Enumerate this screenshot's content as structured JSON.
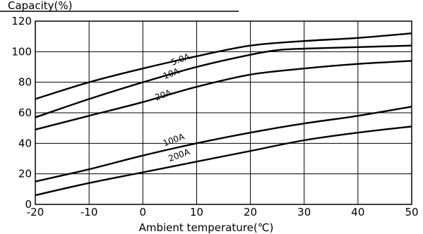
{
  "chart_data": {
    "type": "line",
    "xlabel": "Ambient temperature(℃)",
    "ylabel": "Capacity(%)",
    "xlim": [
      -20,
      50
    ],
    "ylim": [
      0,
      120
    ],
    "x_ticks": [
      -20,
      -10,
      0,
      10,
      20,
      30,
      40,
      50
    ],
    "y_ticks": [
      0,
      20,
      40,
      60,
      80,
      100,
      120
    ],
    "grid": true,
    "series": [
      {
        "name": "5.0A",
        "x": [
          -20,
          -10,
          0,
          10,
          20,
          30,
          40,
          50
        ],
        "values": [
          69,
          80,
          89,
          97,
          104,
          107,
          109,
          112
        ]
      },
      {
        "name": "10A",
        "x": [
          -20,
          -10,
          0,
          10,
          20,
          25,
          30,
          40,
          50
        ],
        "values": [
          57,
          69,
          80,
          90,
          98,
          101,
          102,
          103,
          104
        ]
      },
      {
        "name": "20A",
        "x": [
          -20,
          -10,
          0,
          10,
          20,
          30,
          40,
          50
        ],
        "values": [
          49,
          58,
          67,
          77,
          85,
          89,
          92,
          94
        ]
      },
      {
        "name": "100A",
        "x": [
          -20,
          -10,
          0,
          10,
          20,
          30,
          40,
          50
        ],
        "values": [
          15,
          23,
          32,
          40,
          47,
          53,
          58,
          64
        ]
      },
      {
        "name": "200A",
        "x": [
          -20,
          -10,
          0,
          10,
          20,
          30,
          40,
          50
        ],
        "values": [
          6,
          14,
          21,
          28,
          35,
          42,
          47,
          51
        ]
      }
    ]
  }
}
